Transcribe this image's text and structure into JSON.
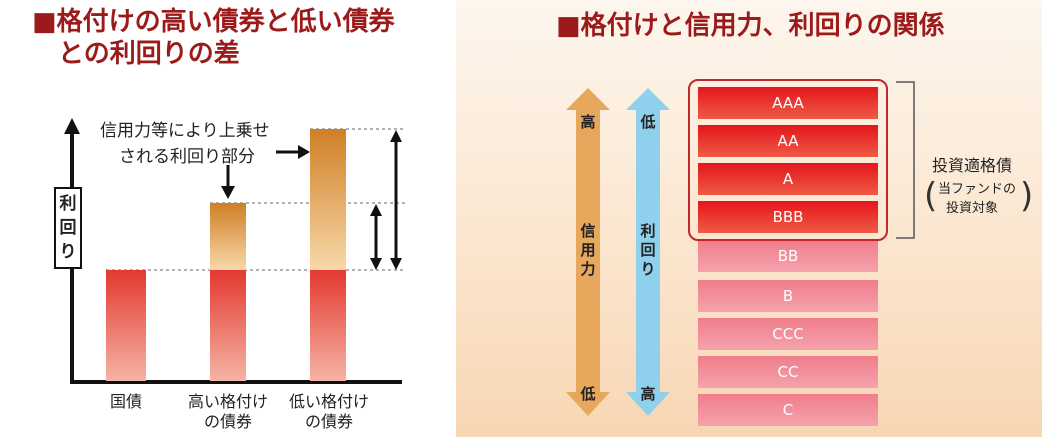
{
  "left": {
    "title_line1": "■格付けの高い債券と低い債券",
    "title_line2": "との利回りの差",
    "annotation_line1": "信用力等により上乗せ",
    "annotation_line2": "される利回り部分",
    "y_axis_label": [
      "利",
      "回",
      "り"
    ],
    "categories": [
      {
        "line1": "国債",
        "line2": ""
      },
      {
        "line1": "高い格付け",
        "line2": "の債券"
      },
      {
        "line1": "低い格付け",
        "line2": "の債券"
      }
    ]
  },
  "right": {
    "title": "■格付けと信用力、利回りの関係",
    "credit_arrow": {
      "top": "高",
      "middle": [
        "信",
        "用",
        "力"
      ],
      "bottom": "低",
      "color": "#e3a65a"
    },
    "yield_arrow": {
      "top": "低",
      "middle": [
        "利",
        "回",
        "り"
      ],
      "bottom": "高",
      "color": "#8fd3ee"
    },
    "ratings": [
      "AAA",
      "AA",
      "A",
      "BBB",
      "BB",
      "B",
      "CCC",
      "CC",
      "C"
    ],
    "investment_grade_label": "投資適格債",
    "fund_target_line1": "当ファンドの",
    "fund_target_line2": "投資対象"
  },
  "colors": {
    "title": "#9b1b1b",
    "investment_grade": "#e32224",
    "speculative": "#ef8a9a",
    "base_bar": "#e5473b",
    "premium_bar": "#d38a2c"
  }
}
